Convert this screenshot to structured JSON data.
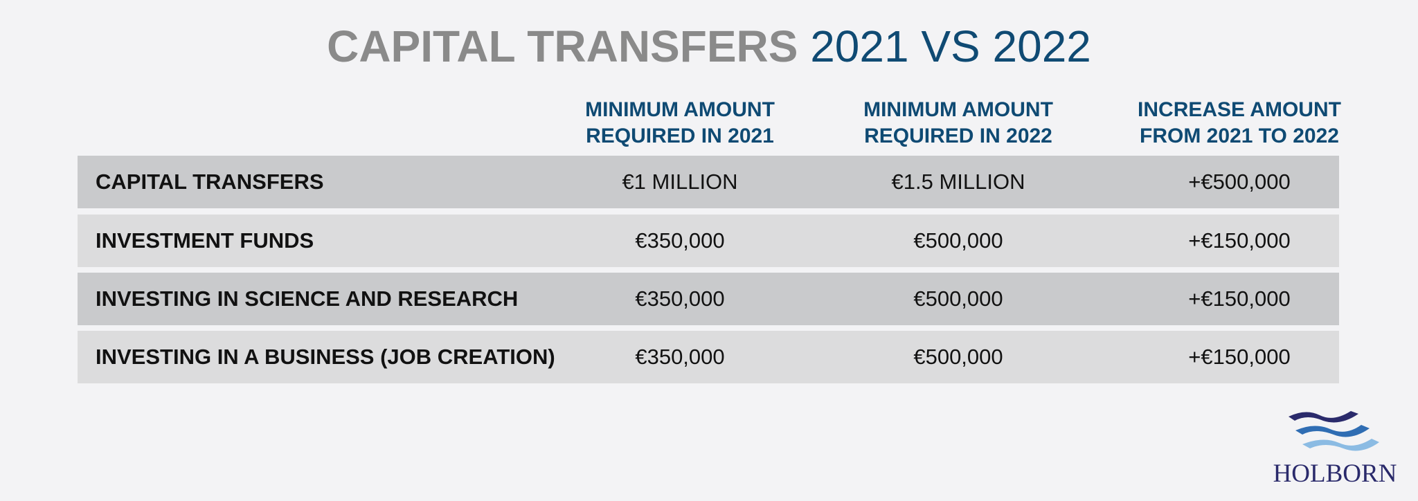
{
  "header": {
    "title_bold": "CAPITAL TRANSFERS",
    "title_light": "2021 VS 2022"
  },
  "table": {
    "columns": [
      [
        "MINIMUM AMOUNT",
        "REQUIRED IN 2021"
      ],
      [
        "MINIMUM AMOUNT",
        "REQUIRED IN 2022"
      ],
      [
        "INCREASE AMOUNT",
        "FROM 2021 TO 2022"
      ]
    ],
    "rows": [
      [
        "CAPITAL TRANSFERS",
        "€1 MILLION",
        "€1.5 MILLION",
        "+€500,000"
      ],
      [
        "INVESTMENT FUNDS",
        "€350,000",
        "€500,000",
        "+€150,000"
      ],
      [
        "INVESTING IN SCIENCE AND RESEARCH",
        "€350,000",
        "€500,000",
        "+€150,000"
      ],
      [
        "INVESTING IN A BUSINESS (JOB CREATION)",
        "€350,000",
        "€500,000",
        "+€150,000"
      ]
    ]
  },
  "logo": {
    "text": "HOLBORN"
  }
}
